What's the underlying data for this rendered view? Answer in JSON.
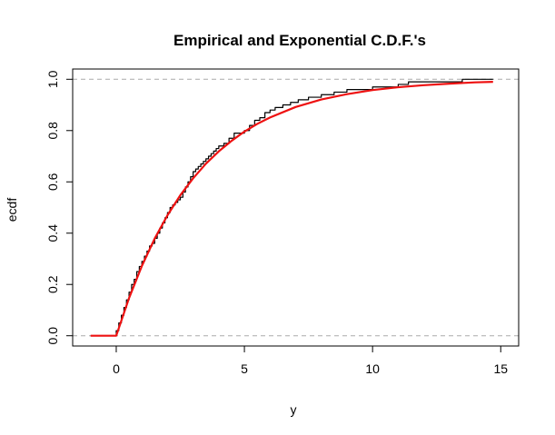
{
  "chart_data": {
    "type": "line",
    "title": "Empirical and Exponential C.D.F.'s",
    "xlabel": "y",
    "ylabel": "ecdf",
    "xlim": [
      -1.7,
      15.7
    ],
    "ylim": [
      -0.04,
      1.04
    ],
    "x_ticks": [
      0,
      5,
      10,
      15
    ],
    "y_ticks": [
      0.0,
      0.2,
      0.4,
      0.6,
      0.8,
      1.0
    ],
    "x_tick_labels": [
      "0",
      "5",
      "10",
      "15"
    ],
    "y_tick_labels": [
      "0.0",
      "0.2",
      "0.4",
      "0.6",
      "0.8",
      "1.0"
    ],
    "reference_lines": [
      0,
      1
    ],
    "grid": false,
    "legend": "none",
    "series": [
      {
        "kind": "step",
        "color": "#000000",
        "x": [
          -1.0,
          0.0,
          0.1,
          0.2,
          0.3,
          0.4,
          0.5,
          0.6,
          0.7,
          0.8,
          0.9,
          1.0,
          1.1,
          1.2,
          1.3,
          1.4,
          1.5,
          1.6,
          1.7,
          1.8,
          1.9,
          2.0,
          2.1,
          2.2,
          2.3,
          2.4,
          2.5,
          2.6,
          2.7,
          2.8,
          2.9,
          3.0,
          3.1,
          3.2,
          3.3,
          3.4,
          3.5,
          3.6,
          3.7,
          3.8,
          3.9,
          4.0,
          4.2,
          4.4,
          4.6,
          5.0,
          5.2,
          5.4,
          5.6,
          5.8,
          6.0,
          6.2,
          6.5,
          6.8,
          7.1,
          7.5,
          8.0,
          8.5,
          9.0,
          9.5,
          10.0,
          10.5,
          11.0,
          11.4,
          12.0,
          13.5,
          14.7
        ],
        "y": [
          0.0,
          0.02,
          0.05,
          0.08,
          0.11,
          0.14,
          0.17,
          0.2,
          0.22,
          0.25,
          0.27,
          0.29,
          0.31,
          0.33,
          0.35,
          0.36,
          0.38,
          0.4,
          0.42,
          0.44,
          0.46,
          0.48,
          0.5,
          0.51,
          0.52,
          0.53,
          0.54,
          0.56,
          0.58,
          0.6,
          0.62,
          0.64,
          0.65,
          0.66,
          0.67,
          0.68,
          0.69,
          0.7,
          0.71,
          0.72,
          0.73,
          0.74,
          0.75,
          0.77,
          0.79,
          0.8,
          0.82,
          0.84,
          0.85,
          0.87,
          0.88,
          0.89,
          0.9,
          0.91,
          0.92,
          0.93,
          0.94,
          0.95,
          0.96,
          0.96,
          0.97,
          0.97,
          0.98,
          0.99,
          0.99,
          1.0,
          1.0
        ]
      },
      {
        "kind": "curve",
        "color": "#ee1111",
        "x": [
          -1.0,
          0.0,
          0.5,
          1.0,
          1.5,
          2.0,
          2.5,
          3.0,
          3.5,
          4.0,
          4.5,
          5.0,
          5.5,
          6.0,
          7.0,
          8.0,
          9.0,
          10.0,
          11.0,
          12.0,
          13.0,
          14.0,
          14.7
        ],
        "y": [
          0.0,
          0.0,
          0.147,
          0.272,
          0.379,
          0.47,
          0.548,
          0.614,
          0.671,
          0.719,
          0.76,
          0.796,
          0.826,
          0.851,
          0.892,
          0.921,
          0.942,
          0.958,
          0.969,
          0.977,
          0.983,
          0.988,
          0.99
        ]
      }
    ]
  }
}
